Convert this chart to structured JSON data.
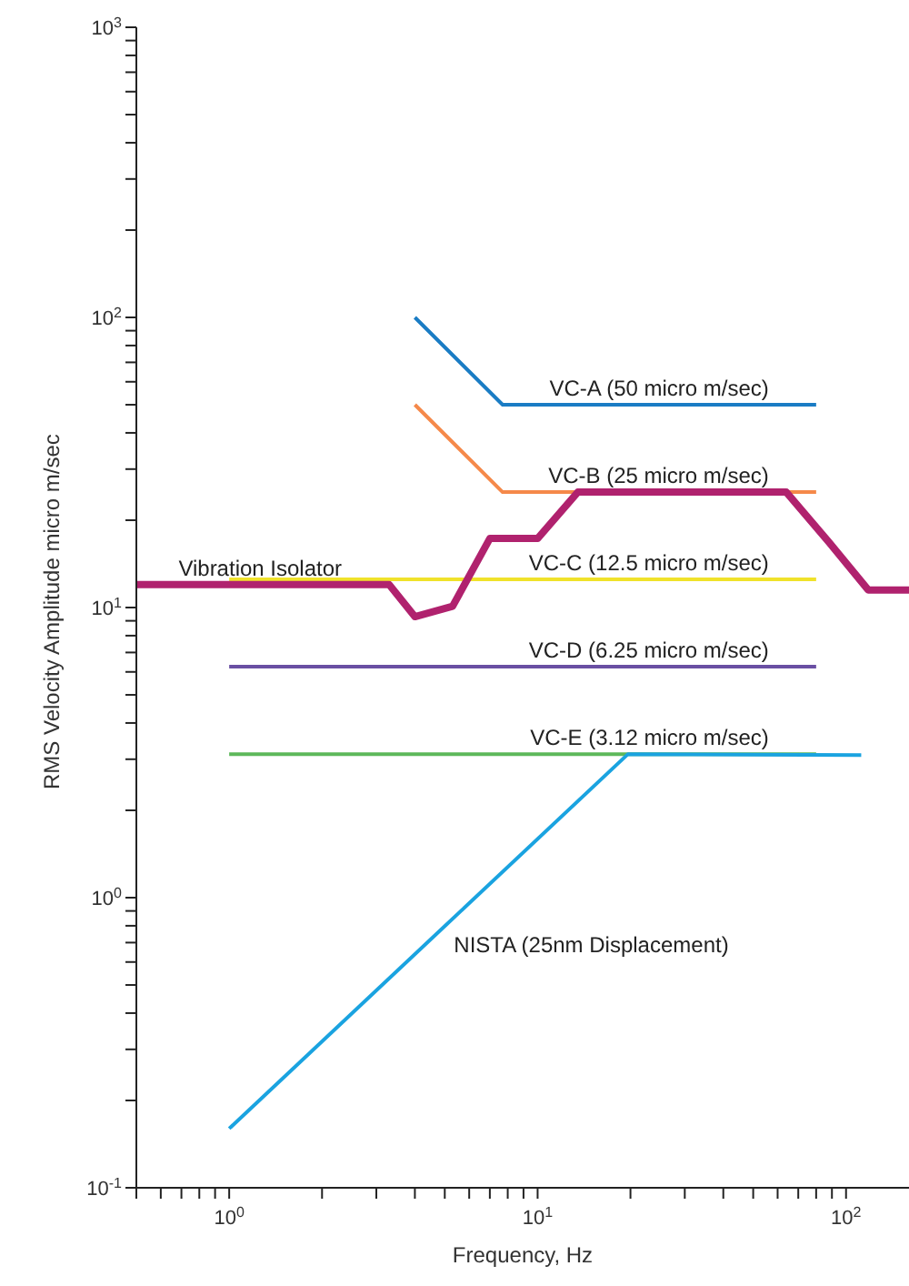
{
  "chart_data": {
    "type": "line",
    "xlabel": "Frequency, Hz",
    "ylabel": "RMS Velocity Amplitude micro m/sec",
    "log": "xy",
    "marker": "none",
    "xlim": [
      0.5,
      160
    ],
    "ylim": [
      0.1,
      1000
    ],
    "xticks": [
      {
        "value": 1,
        "label": "10$^{0}$"
      },
      {
        "value": 10,
        "label": "10$^{1}$"
      },
      {
        "value": 100,
        "label": "10$^{2}$"
      },
      {
        "value": 0.5,
        "label": null
      },
      {
        "value": 0.6,
        "label": null
      },
      {
        "value": 0.7,
        "label": null
      },
      {
        "value": 0.8,
        "label": null
      },
      {
        "value": 0.9,
        "label": null
      },
      {
        "value": 2,
        "label": null
      },
      {
        "value": 3,
        "label": null
      },
      {
        "value": 4,
        "label": null
      },
      {
        "value": 5,
        "label": null
      },
      {
        "value": 6,
        "label": null
      },
      {
        "value": 7,
        "label": null
      },
      {
        "value": 8,
        "label": null
      },
      {
        "value": 9,
        "label": null
      },
      {
        "value": 20,
        "label": null
      },
      {
        "value": 30,
        "label": null
      },
      {
        "value": 40,
        "label": null
      },
      {
        "value": 50,
        "label": null
      },
      {
        "value": 60,
        "label": null
      },
      {
        "value": 70,
        "label": null
      },
      {
        "value": 80,
        "label": null
      },
      {
        "value": 90,
        "label": null
      }
    ],
    "yticks": [
      {
        "value": 0.1,
        "label": "10$^{-1}$"
      },
      {
        "value": 1,
        "label": "10$^{0}$"
      },
      {
        "value": 10,
        "label": "10$^{1}$"
      },
      {
        "value": 100,
        "label": "10$^{2}$"
      },
      {
        "value": 1000,
        "label": "10$^{3}$"
      },
      {
        "value": 0.2,
        "label": null
      },
      {
        "value": 0.3,
        "label": null
      },
      {
        "value": 0.4,
        "label": null
      },
      {
        "value": 0.5,
        "label": null
      },
      {
        "value": 0.6,
        "label": null
      },
      {
        "value": 0.7,
        "label": null
      },
      {
        "value": 0.8,
        "label": null
      },
      {
        "value": 0.9,
        "label": null
      },
      {
        "value": 2,
        "label": null
      },
      {
        "value": 3,
        "label": null
      },
      {
        "value": 4,
        "label": null
      },
      {
        "value": 5,
        "label": null
      },
      {
        "value": 6,
        "label": null
      },
      {
        "value": 7,
        "label": null
      },
      {
        "value": 8,
        "label": null
      },
      {
        "value": 9,
        "label": null
      },
      {
        "value": 20,
        "label": null
      },
      {
        "value": 30,
        "label": null
      },
      {
        "value": 40,
        "label": null
      },
      {
        "value": 50,
        "label": null
      },
      {
        "value": 60,
        "label": null
      },
      {
        "value": 70,
        "label": null
      },
      {
        "value": 80,
        "label": null
      },
      {
        "value": 90,
        "label": null
      },
      {
        "value": 200,
        "label": null
      },
      {
        "value": 300,
        "label": null
      },
      {
        "value": 400,
        "label": null
      },
      {
        "value": 500,
        "label": null
      },
      {
        "value": 600,
        "label": null
      },
      {
        "value": 700,
        "label": null
      },
      {
        "value": 800,
        "label": null
      },
      {
        "value": 900,
        "label": null
      }
    ],
    "series": [
      {
        "name": "VC-A (50 micro m/sec)",
        "color": "#1a7cc4",
        "x": [
          4,
          7.7,
          80
        ],
        "values": [
          100,
          50,
          50
        ]
      },
      {
        "name": "VC-B (25 micro m/sec)",
        "color": "#f5894a",
        "x": [
          4,
          7.7,
          80
        ],
        "values": [
          50,
          25,
          25
        ]
      },
      {
        "name": "VC-C (12.5 micro m/sec)",
        "color": "#f0e22a",
        "x": [
          1,
          80
        ],
        "values": [
          12.5,
          12.5
        ]
      },
      {
        "name": "VC-D (6.25 micro m/sec)",
        "color": "#6a4fa3",
        "x": [
          1,
          80
        ],
        "values": [
          6.25,
          6.25
        ]
      },
      {
        "name": "VC-E (3.12 micro m/sec)",
        "color": "#5db85a",
        "x": [
          1,
          80
        ],
        "values": [
          3.12,
          3.12
        ]
      },
      {
        "name": "NISTA (25nm Displacement)",
        "color": "#1aa3e0",
        "x": [
          1,
          19.6,
          112
        ],
        "values": [
          0.16,
          3.12,
          3.1
        ]
      },
      {
        "name": "Vibration Isolator",
        "color": "#b0226e",
        "x": [
          0.5,
          3.3,
          4,
          5.3,
          7,
          10,
          13.5,
          64,
          88,
          118,
          160
        ],
        "values": [
          12,
          12,
          9.3,
          10.1,
          17.3,
          17.3,
          25,
          25,
          16.8,
          11.5,
          11.5
        ]
      }
    ]
  }
}
